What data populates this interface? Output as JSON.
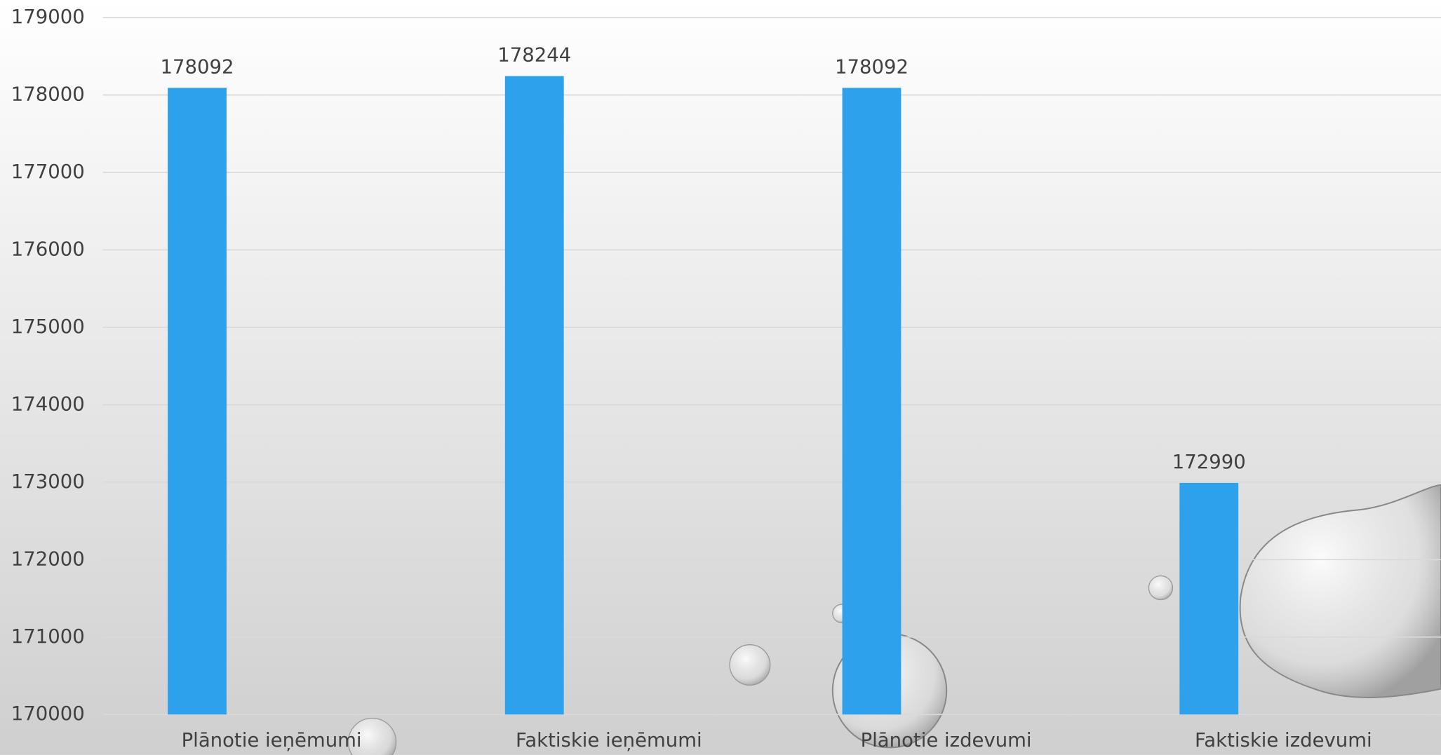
{
  "chart_data": {
    "type": "bar",
    "categories": [
      "Plānotie ieņēmumi",
      "Faktiskie ieņēmumi",
      "Plānotie izdevumi",
      "Faktiskie izdevumi"
    ],
    "values": [
      178092,
      178244,
      178092,
      172990
    ],
    "color": "#2ea1ec",
    "ylim": [
      170000,
      179000
    ],
    "yticks": [
      170000,
      171000,
      172000,
      173000,
      174000,
      175000,
      176000,
      177000,
      178000,
      179000
    ],
    "grid": true
  }
}
